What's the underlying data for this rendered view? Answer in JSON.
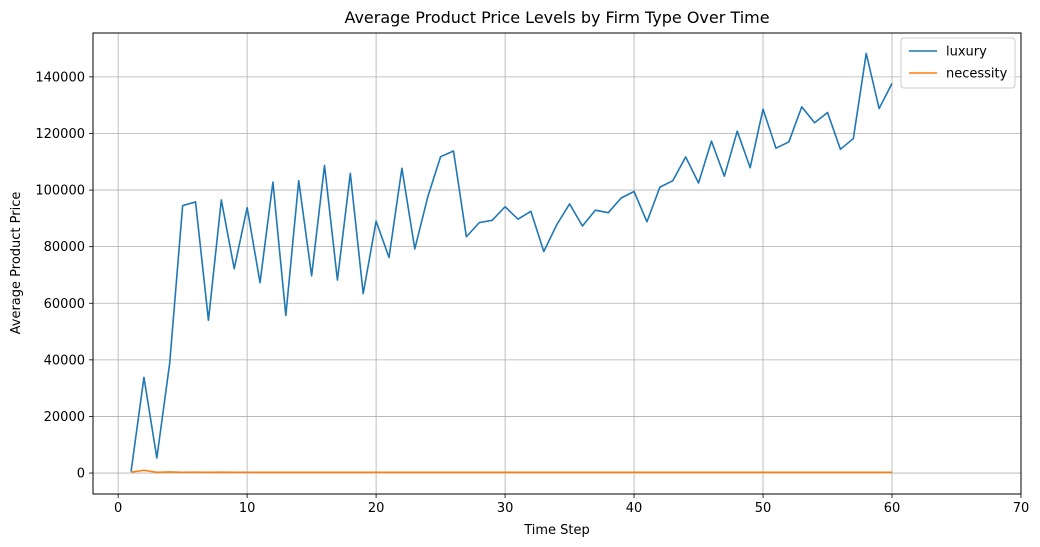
{
  "chart_data": {
    "type": "line",
    "title": "Average Product Price Levels by Firm Type Over Time",
    "xlabel": "Time Step",
    "ylabel": "Average Product Price",
    "xlim": [
      -1.95,
      70
    ],
    "ylim": [
      -7400,
      155500
    ],
    "xticks": [
      0,
      10,
      20,
      30,
      40,
      50,
      60,
      70
    ],
    "yticks": [
      0,
      20000,
      40000,
      60000,
      80000,
      100000,
      120000,
      140000
    ],
    "grid": true,
    "legend_position": "top-right",
    "x": [
      1,
      2,
      3,
      4,
      5,
      6,
      7,
      8,
      9,
      10,
      11,
      12,
      13,
      14,
      15,
      16,
      17,
      18,
      19,
      20,
      21,
      22,
      23,
      24,
      25,
      26,
      27,
      28,
      29,
      30,
      31,
      32,
      33,
      34,
      35,
      36,
      37,
      38,
      39,
      40,
      41,
      42,
      43,
      44,
      45,
      46,
      47,
      48,
      49,
      50,
      51,
      52,
      53,
      54,
      55,
      56,
      57,
      58,
      59,
      60
    ],
    "series": [
      {
        "name": "luxury",
        "color": "#1f77b4",
        "values": [
          500,
          33800,
          5300,
          39000,
          94500,
          95800,
          54000,
          96500,
          72200,
          93800,
          67300,
          102800,
          55700,
          103300,
          69700,
          108700,
          68200,
          105900,
          63400,
          89000,
          76200,
          107700,
          79200,
          97500,
          111800,
          113800,
          83500,
          88500,
          89300,
          94100,
          89700,
          92500,
          78300,
          87700,
          95100,
          87300,
          92900,
          92000,
          97200,
          99500,
          88800,
          101000,
          103300,
          111700,
          102500,
          117300,
          104900,
          120800,
          107900,
          128600,
          114800,
          117000,
          129400,
          123800,
          127400,
          114400,
          118200,
          148300,
          128800,
          137700
        ]
      },
      {
        "name": "necessity",
        "color": "#ff7f0e",
        "values": [
          300,
          1000,
          250,
          380,
          260,
          330,
          280,
          300,
          270,
          290,
          260,
          280,
          250,
          270,
          260,
          280,
          250,
          270,
          260,
          280,
          250,
          270,
          260,
          280,
          250,
          270,
          260,
          280,
          250,
          270,
          260,
          280,
          250,
          270,
          260,
          280,
          250,
          270,
          260,
          280,
          250,
          270,
          260,
          280,
          250,
          270,
          260,
          280,
          250,
          270,
          260,
          280,
          250,
          270,
          260,
          280,
          250,
          270,
          260,
          280
        ]
      }
    ]
  }
}
